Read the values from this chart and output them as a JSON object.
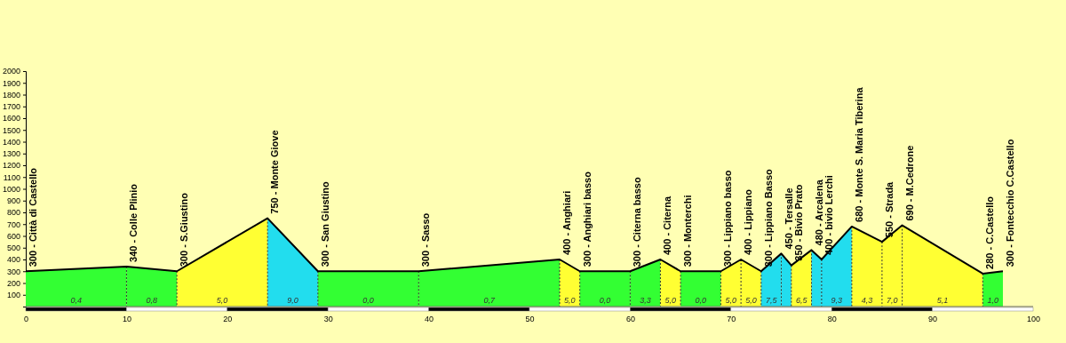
{
  "chart_data": {
    "type": "area",
    "series": [
      {
        "type": "line",
        "color": "#000000",
        "x": [
          0,
          10,
          15,
          24,
          29,
          39,
          53,
          55,
          60,
          63,
          65,
          69,
          71,
          73,
          75,
          76,
          78,
          79,
          82,
          85,
          87,
          95,
          97
        ],
        "values": [
          300,
          340,
          300,
          750,
          300,
          300,
          400,
          300,
          300,
          400,
          300,
          300,
          400,
          300,
          450,
          350,
          480,
          400,
          680,
          550,
          690,
          280,
          300
        ],
        "value_labels": [
          "300 - Città di Castello",
          "340 - Colle Plinio",
          "300 - S.Giustino",
          "750 - Monte Giove",
          "300 - San Giustino",
          "300 - Sasso",
          "400 - Anghiari",
          "300 - Anghiari basso",
          "300 - Citerna basso",
          "400 - Citerna",
          "300 - Monterchi",
          "300 - Lippiano basso",
          "400 - Lippiano",
          "300 - Lippiano Basso",
          "450 - Tersalle",
          "350 - Bivio Prato",
          "480 - Arcalena",
          "400 - bivio Lerchi",
          "680 - Monte S. Maria Tiberina",
          "550 - Strada",
          "690 - M.Cedrone",
          "280 - C.Castello",
          "300 - Fontecchio C.Castello"
        ]
      },
      {
        "color": "#33ff33",
        "x": [
          0,
          10
        ],
        "values": [
          300,
          340
        ]
      },
      {
        "color": "#33ff33",
        "x": [
          10,
          15
        ],
        "values": [
          340,
          300
        ]
      },
      {
        "color": "#ffff33",
        "x": [
          15,
          24
        ],
        "values": [
          300,
          750
        ]
      },
      {
        "color": "#22ddee",
        "x": [
          24,
          29
        ],
        "values": [
          750,
          300
        ]
      },
      {
        "color": "#33ff33",
        "x": [
          29,
          39
        ],
        "values": [
          300,
          300
        ]
      },
      {
        "color": "#33ff33",
        "x": [
          39,
          53
        ],
        "values": [
          300,
          400
        ]
      },
      {
        "color": "#ffff33",
        "x": [
          53,
          55
        ],
        "values": [
          400,
          300
        ]
      },
      {
        "color": "#33ff33",
        "x": [
          55,
          60
        ],
        "values": [
          300,
          300
        ]
      },
      {
        "color": "#33ff33",
        "x": [
          60,
          63
        ],
        "values": [
          300,
          400
        ]
      },
      {
        "color": "#ffff33",
        "x": [
          63,
          65
        ],
        "values": [
          400,
          300
        ]
      },
      {
        "color": "#33ff33",
        "x": [
          65,
          69
        ],
        "values": [
          300,
          300
        ]
      },
      {
        "color": "#ffff33",
        "x": [
          69,
          71
        ],
        "values": [
          300,
          400
        ]
      },
      {
        "color": "#ffff33",
        "x": [
          71,
          73
        ],
        "values": [
          400,
          300
        ]
      },
      {
        "color": "#22ddee",
        "x": [
          73,
          75
        ],
        "values": [
          300,
          450
        ]
      },
      {
        "color": "#22ddee",
        "x": [
          75,
          76
        ],
        "values": [
          450,
          350
        ]
      },
      {
        "color": "#ffff33",
        "x": [
          76,
          78
        ],
        "values": [
          350,
          480
        ]
      },
      {
        "color": "#22ddee",
        "x": [
          78,
          79
        ],
        "values": [
          480,
          400
        ]
      },
      {
        "color": "#22ddee",
        "x": [
          79,
          82
        ],
        "values": [
          400,
          680
        ]
      },
      {
        "color": "#ffff33",
        "x": [
          82,
          85
        ],
        "values": [
          680,
          550
        ]
      },
      {
        "color": "#ffff33",
        "x": [
          85,
          87
        ],
        "values": [
          550,
          690
        ]
      },
      {
        "color": "#ffff33",
        "x": [
          87,
          95
        ],
        "values": [
          690,
          280
        ]
      },
      {
        "color": "#33ff33",
        "x": [
          95,
          97
        ],
        "values": [
          280,
          300
        ]
      }
    ],
    "ref_lines": [
      {
        "axis": "x",
        "value": 10,
        "line_style": "dashed"
      },
      {
        "axis": "x",
        "value": 15,
        "line_style": "dashed"
      },
      {
        "axis": "x",
        "value": 24,
        "line_style": "dashed"
      },
      {
        "axis": "x",
        "value": 29,
        "line_style": "dashed"
      },
      {
        "axis": "x",
        "value": 39,
        "line_style": "dashed"
      },
      {
        "axis": "x",
        "value": 53,
        "line_style": "dashed"
      },
      {
        "axis": "x",
        "value": 55,
        "line_style": "dashed"
      },
      {
        "axis": "x",
        "value": 60,
        "line_style": "dashed"
      },
      {
        "axis": "x",
        "value": 63,
        "line_style": "dashed"
      },
      {
        "axis": "x",
        "value": 65,
        "line_style": "dashed"
      },
      {
        "axis": "x",
        "value": 69,
        "line_style": "dashed"
      },
      {
        "axis": "x",
        "value": 71,
        "line_style": "dashed"
      },
      {
        "axis": "x",
        "value": 73,
        "line_style": "dashed"
      },
      {
        "axis": "x",
        "value": 75,
        "line_style": "dashed"
      },
      {
        "axis": "x",
        "value": 76,
        "line_style": "dashed"
      },
      {
        "axis": "x",
        "value": 78,
        "line_style": "dashed"
      },
      {
        "axis": "x",
        "value": 79,
        "line_style": "dashed"
      },
      {
        "axis": "x",
        "value": 82,
        "line_style": "dashed"
      },
      {
        "axis": "x",
        "value": 85,
        "line_style": "dashed"
      },
      {
        "axis": "x",
        "value": 87,
        "line_style": "dashed"
      },
      {
        "axis": "x",
        "value": 95,
        "line_style": "dashed"
      }
    ],
    "annotations": [
      "0,4",
      "0,8",
      "5,0",
      "9,0",
      "0,0",
      "0,7",
      "5,0",
      "0,0",
      "3,3",
      "5,0",
      "0,0",
      "5,0",
      "5,0",
      "7,5",
      "6,5",
      "9,3",
      "4,3",
      "7,0",
      "5,1",
      "1,0"
    ],
    "xlim": [
      0,
      100
    ],
    "xticks": [
      0,
      10,
      20,
      30,
      40,
      50,
      60,
      70,
      80,
      90,
      100
    ],
    "ylim": [
      0,
      2000
    ],
    "yticks": [
      {
        "value": 0,
        "label": null
      },
      100,
      200,
      300,
      400,
      500,
      600,
      700,
      800,
      900,
      1000,
      1100,
      1200,
      1300,
      1400,
      1500,
      1600,
      1700,
      1800,
      1900,
      2000
    ],
    "grid": false
  }
}
